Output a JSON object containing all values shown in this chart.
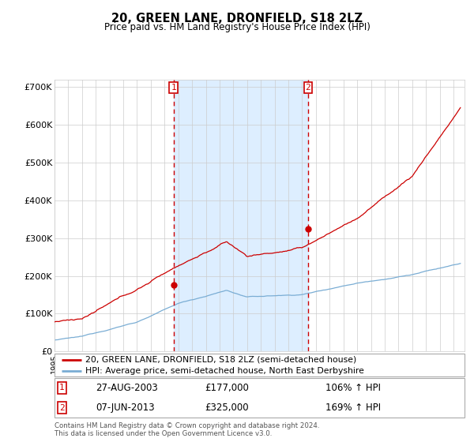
{
  "title": "20, GREEN LANE, DRONFIELD, S18 2LZ",
  "subtitle": "Price paid vs. HM Land Registry's House Price Index (HPI)",
  "hpi_label": "HPI: Average price, semi-detached house, North East Derbyshire",
  "price_label": "20, GREEN LANE, DRONFIELD, S18 2LZ (semi-detached house)",
  "sale1_date": "27-AUG-2003",
  "sale1_price": 177000,
  "sale1_hpi": "106%",
  "sale2_date": "07-JUN-2013",
  "sale2_price": 325000,
  "sale2_hpi": "169%",
  "sale1_year": 2003.65,
  "sale2_year": 2013.43,
  "red_color": "#cc0000",
  "blue_color": "#7aadd4",
  "bg_color": "#ddeeff",
  "grid_color": "#cccccc",
  "footnote": "Contains HM Land Registry data © Crown copyright and database right 2024.\nThis data is licensed under the Open Government Licence v3.0.",
  "ylim": [
    0,
    720000
  ],
  "xlim": [
    1995,
    2024.8
  ],
  "yticks": [
    0,
    100000,
    200000,
    300000,
    400000,
    500000,
    600000,
    700000
  ],
  "ylabels": [
    "£0",
    "£100K",
    "£200K",
    "£300K",
    "£400K",
    "£500K",
    "£600K",
    "£700K"
  ]
}
